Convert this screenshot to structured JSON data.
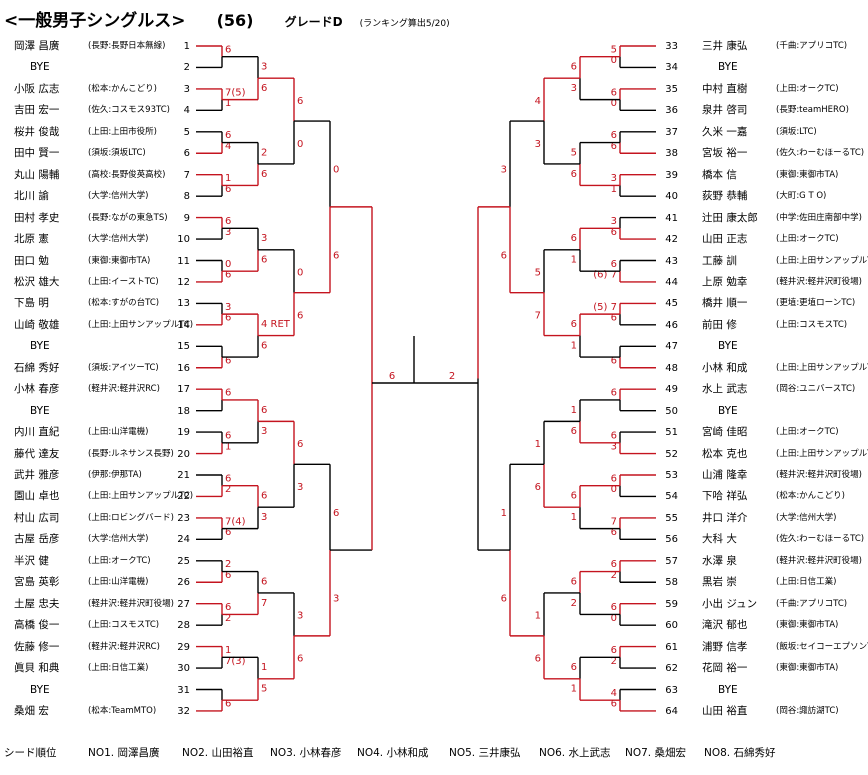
{
  "title": "<一般男子シングルス>",
  "draw_number": "(56)",
  "grade": "グレードD",
  "ranking_note": "(ランキング算出5/20)",
  "left_players": [
    {
      "no": "1",
      "name": "岡澤 昌廣",
      "club": "(長野:長野日本無線)"
    },
    {
      "no": "2",
      "name": "BYE",
      "club": ""
    },
    {
      "no": "3",
      "name": "小阪 広志",
      "club": "(松本:かんこどり)"
    },
    {
      "no": "4",
      "name": "吉田 宏一",
      "club": "(佐久:コスモス93TC)"
    },
    {
      "no": "5",
      "name": "桜井 俊哉",
      "club": "(上田:上田市役所)"
    },
    {
      "no": "6",
      "name": "田中 賢一",
      "club": "(須坂:須坂LTC)"
    },
    {
      "no": "7",
      "name": "丸山 陽輔",
      "club": "(高校:長野俊英高校)"
    },
    {
      "no": "8",
      "name": "北川 諭",
      "club": "(大学:信州大学)"
    },
    {
      "no": "9",
      "name": "田村 孝史",
      "club": "(長野:ながの東急TS)"
    },
    {
      "no": "10",
      "name": "北原 憲",
      "club": "(大学:信州大学)"
    },
    {
      "no": "11",
      "name": "田口 勉",
      "club": "(東御:東御市TA)"
    },
    {
      "no": "12",
      "name": "松沢 雄大",
      "club": "(上田:イーストTC)"
    },
    {
      "no": "13",
      "name": "下島 明",
      "club": "(松本:すがの台TC)"
    },
    {
      "no": "14",
      "name": "山崎 敬雄",
      "club": "(上田:上田サンアップルTC)"
    },
    {
      "no": "15",
      "name": "BYE",
      "club": ""
    },
    {
      "no": "16",
      "name": "石綿 秀好",
      "club": "(須坂:アイツーTC)"
    },
    {
      "no": "17",
      "name": "小林 春彦",
      "club": "(軽井沢:軽井沢RC)"
    },
    {
      "no": "18",
      "name": "BYE",
      "club": ""
    },
    {
      "no": "19",
      "name": "内川 直紀",
      "club": "(上田:山洋電機)"
    },
    {
      "no": "20",
      "name": "藤代 達友",
      "club": "(長野:ルネサンス長野)"
    },
    {
      "no": "21",
      "name": "武井 雅彦",
      "club": "(伊那:伊那TA)"
    },
    {
      "no": "22",
      "name": "園山 卓也",
      "club": "(上田:上田サンアップルTC)"
    },
    {
      "no": "23",
      "name": "村山 広司",
      "club": "(上田:ロビングバード)"
    },
    {
      "no": "24",
      "name": "古屋 岳彦",
      "club": "(大学:信州大学)"
    },
    {
      "no": "25",
      "name": "半沢 健",
      "club": "(上田:オークTC)"
    },
    {
      "no": "26",
      "name": "宮島 英彰",
      "club": "(上田:山洋電機)"
    },
    {
      "no": "27",
      "name": "土屋 忠夫",
      "club": "(軽井沢:軽井沢町役場)"
    },
    {
      "no": "28",
      "name": "高橋 俊一",
      "club": "(上田:コスモスTC)"
    },
    {
      "no": "29",
      "name": "佐藤 修一",
      "club": "(軽井沢:軽井沢RC)"
    },
    {
      "no": "30",
      "name": "眞貝 和典",
      "club": "(上田:日信工業)"
    },
    {
      "no": "31",
      "name": "BYE",
      "club": ""
    },
    {
      "no": "32",
      "name": "桑畑 宏",
      "club": "(松本:TeamMTO)"
    }
  ],
  "right_players": [
    {
      "no": "33",
      "name": "三井 康弘",
      "club": "(千曲:アプリコTC)"
    },
    {
      "no": "34",
      "name": "BYE",
      "club": ""
    },
    {
      "no": "35",
      "name": "中村 直樹",
      "club": "(上田:オークTC)"
    },
    {
      "no": "36",
      "name": "泉井 啓司",
      "club": "(長野:teamHERO)"
    },
    {
      "no": "37",
      "name": "久米 一嘉",
      "club": "(須坂:LTC)"
    },
    {
      "no": "38",
      "name": "宮坂 裕一",
      "club": "(佐久:わーむほーるTC)"
    },
    {
      "no": "39",
      "name": "橋本 信",
      "club": "(東御:東御市TA)"
    },
    {
      "no": "40",
      "name": "荻野 恭輔",
      "club": "(大町:G T O)"
    },
    {
      "no": "41",
      "name": "辻田 康太郎",
      "club": "(中学:佐田庄南部中学)"
    },
    {
      "no": "42",
      "name": "山田 正志",
      "club": "(上田:オークTC)"
    },
    {
      "no": "43",
      "name": "工藤 訓",
      "club": "(上田:上田サンアップルTC)"
    },
    {
      "no": "44",
      "name": "上原 勉幸",
      "club": "(軽井沢:軽井沢町役場)"
    },
    {
      "no": "45",
      "name": "橋井 順一",
      "club": "(更埴:更埴ローンTC)"
    },
    {
      "no": "46",
      "name": "前田 修",
      "club": "(上田:コスモスTC)"
    },
    {
      "no": "47",
      "name": "BYE",
      "club": ""
    },
    {
      "no": "48",
      "name": "小林 和成",
      "club": "(上田:上田サンアップルTC)"
    },
    {
      "no": "49",
      "name": "水上 武志",
      "club": "(岡谷:ユニバースTC)"
    },
    {
      "no": "50",
      "name": "BYE",
      "club": ""
    },
    {
      "no": "51",
      "name": "宮崎 佳昭",
      "club": "(上田:オークTC)"
    },
    {
      "no": "52",
      "name": "松本 克也",
      "club": "(上田:上田サンアップルTC)"
    },
    {
      "no": "53",
      "name": "山浦 隆幸",
      "club": "(軽井沢:軽井沢町役場)"
    },
    {
      "no": "54",
      "name": "下哈 祥弘",
      "club": "(松本:かんこどり)"
    },
    {
      "no": "55",
      "name": "井口 洋介",
      "club": "(大学:信州大学)"
    },
    {
      "no": "56",
      "name": "大科 大",
      "club": "(佐久:わーむほーるTC)"
    },
    {
      "no": "57",
      "name": "水澤 泉",
      "club": "(軽井沢:軽井沢町役場)"
    },
    {
      "no": "58",
      "name": "黒岩 崇",
      "club": "(上田:日信工業)"
    },
    {
      "no": "59",
      "name": "小出 ジュン",
      "club": "(千曲:アプリコTC)"
    },
    {
      "no": "60",
      "name": "滝沢 郁也",
      "club": "(東御:東御市TA)"
    },
    {
      "no": "61",
      "name": "浦野 信孝",
      "club": "(飯坂:セイコーエプソンTC)"
    },
    {
      "no": "62",
      "name": "花岡 裕一",
      "club": "(東御:東御市TA)"
    },
    {
      "no": "63",
      "name": "BYE",
      "club": ""
    },
    {
      "no": "64",
      "name": "山田 裕直",
      "club": "(岡谷:諏訪湖TC)"
    }
  ],
  "scores_left_r1": [
    [
      "6",
      ""
    ],
    [
      "7(5)",
      "1"
    ],
    [
      "6",
      "4"
    ],
    [
      "1",
      "6"
    ],
    [
      "6",
      "3"
    ],
    [
      "0",
      "6"
    ],
    [
      "3",
      "6"
    ],
    [
      "",
      "6"
    ],
    [
      "6",
      ""
    ],
    [
      "6",
      "1"
    ],
    [
      "6",
      "2"
    ],
    [
      "7(4)",
      "6"
    ],
    [
      "2",
      "6"
    ],
    [
      "6",
      "2"
    ],
    [
      "1",
      "7(3)"
    ],
    [
      "",
      "6"
    ]
  ],
  "scores_left_r2": [
    [
      "3",
      "6"
    ],
    [
      "2",
      "6"
    ],
    [
      "3",
      "6"
    ],
    [
      "4 RET",
      "6"
    ],
    [
      "6",
      "3"
    ],
    [
      "6",
      "3"
    ],
    [
      "6",
      "7"
    ],
    [
      "1",
      "5"
    ]
  ],
  "scores_left_r3": [
    [
      "6",
      "0"
    ],
    [
      "0",
      "6"
    ],
    [
      "6",
      "3"
    ],
    [
      "3",
      "6"
    ]
  ],
  "scores_left_r4": [
    [
      "0",
      "6"
    ],
    [
      "6",
      "3"
    ]
  ],
  "scores_right_r1": [
    [
      "5",
      "0"
    ],
    [
      "6",
      "0"
    ],
    [
      "6",
      "6"
    ],
    [
      "3",
      "1"
    ],
    [
      "3",
      "6"
    ],
    [
      "6",
      "(6) 7"
    ],
    [
      "(5) 7",
      "6"
    ],
    [
      "",
      "6"
    ],
    [
      "6",
      ""
    ],
    [
      "6",
      "3"
    ],
    [
      "6",
      "0"
    ],
    [
      "7",
      "6"
    ],
    [
      "6",
      "2"
    ],
    [
      "6",
      "0"
    ],
    [
      "6",
      "2"
    ],
    [
      "4",
      "6"
    ]
  ],
  "scores_right_r2": [
    [
      "6",
      "3"
    ],
    [
      "5",
      "6"
    ],
    [
      "6",
      "1"
    ],
    [
      "6",
      "1"
    ],
    [
      "1",
      "6"
    ],
    [
      "6",
      "1"
    ],
    [
      "6",
      "2"
    ],
    [
      "6",
      "1"
    ]
  ],
  "scores_right_r3": [
    [
      "4",
      "3"
    ],
    [
      "5",
      "7"
    ],
    [
      "1",
      "6"
    ],
    [
      "1",
      "6"
    ]
  ],
  "scores_right_r4": [
    [
      "3",
      "6"
    ],
    [
      "1",
      "6"
    ]
  ],
  "final_left_score": "6",
  "final_right_score": "2",
  "seeds_label": "シード順位",
  "seeds": [
    "NO1. 岡澤昌廣",
    "NO2. 山田裕直",
    "NO3. 小林春彦",
    "NO4. 小林和成",
    "NO5. 三井康弘",
    "NO6. 水上武志",
    "NO7. 桑畑宏",
    "NO8. 石綿秀好"
  ],
  "colors": {
    "winner_line": "#c4141f",
    "bracket_line": "#000000",
    "score_ink": "#c4141f"
  }
}
